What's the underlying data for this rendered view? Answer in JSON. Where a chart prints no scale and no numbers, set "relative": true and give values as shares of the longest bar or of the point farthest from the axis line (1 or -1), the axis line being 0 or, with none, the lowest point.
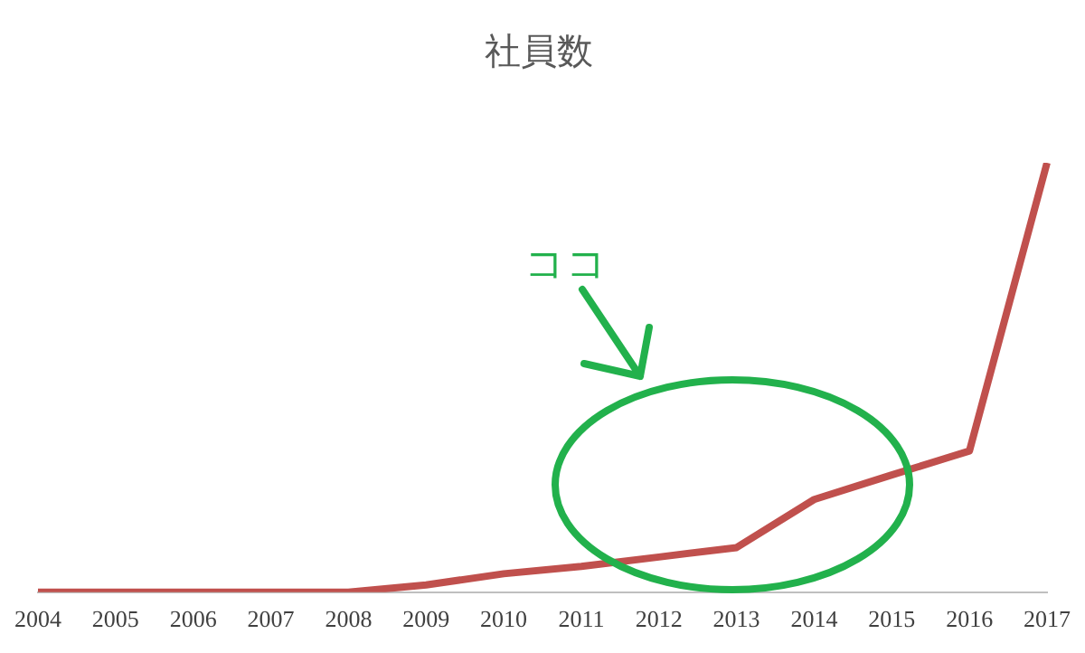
{
  "chart_data": {
    "type": "line",
    "title": "社員数",
    "relative": true,
    "categories": [
      "2004",
      "2005",
      "2006",
      "2007",
      "2008",
      "2009",
      "2010",
      "2011",
      "2012",
      "2013",
      "2014",
      "2015",
      "2016",
      "2017"
    ],
    "series": [
      {
        "color": "#c0504d",
        "values": [
          0,
          0,
          0,
          0,
          0,
          0.017,
          0.043,
          0.06,
          0.082,
          0.104,
          0.216,
          0.273,
          0.329,
          1
        ]
      }
    ],
    "annotations": [
      "ココ"
    ],
    "marker": "none",
    "grid": false,
    "legend": false
  }
}
